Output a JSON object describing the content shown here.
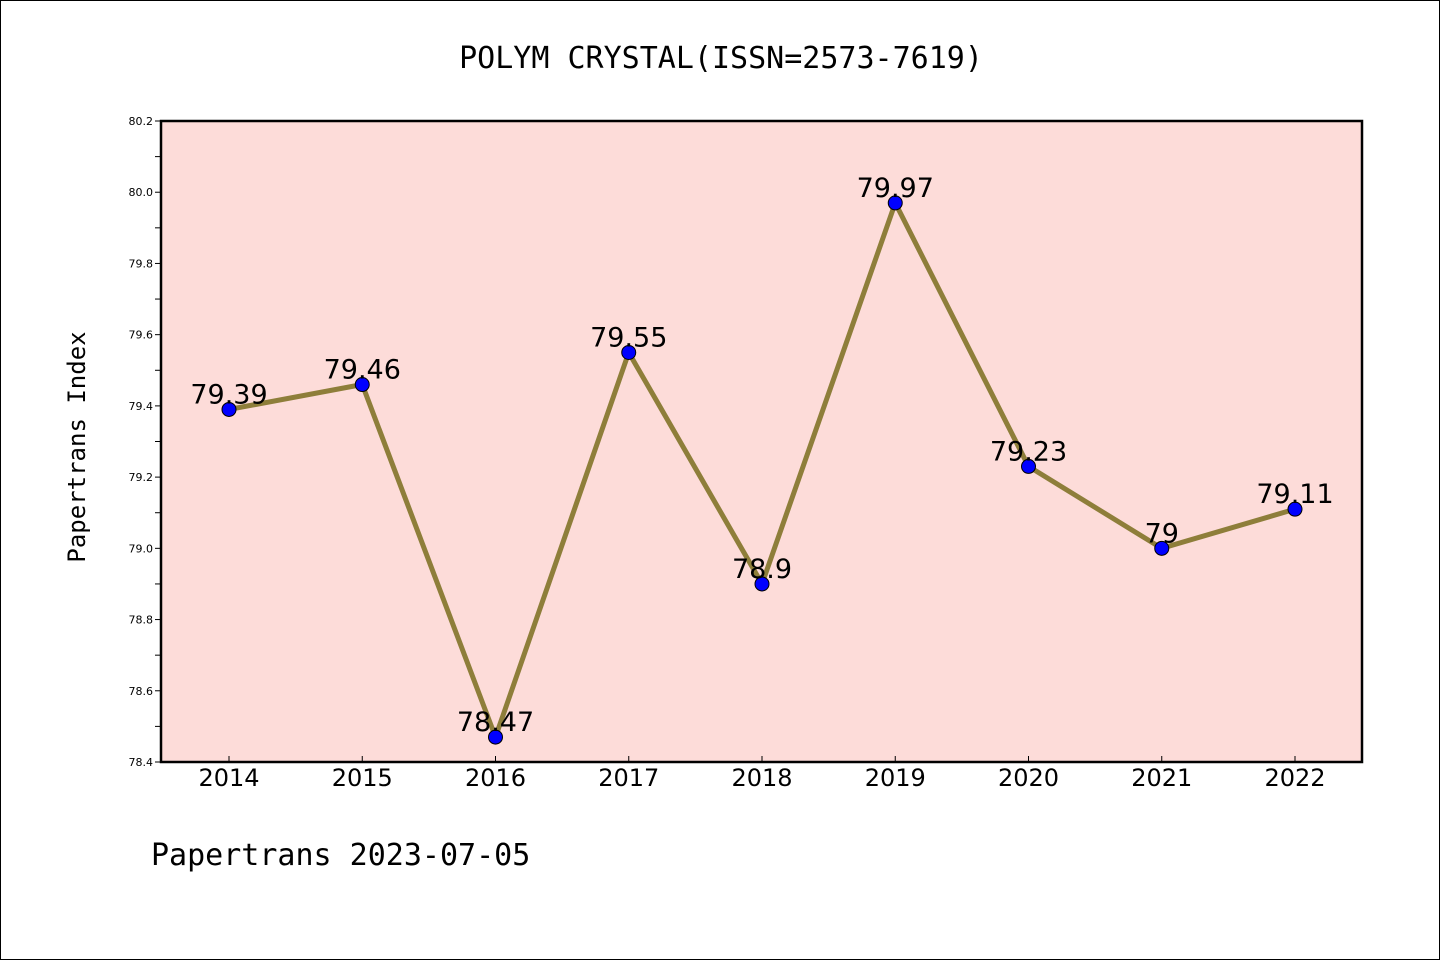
{
  "chart_data": {
    "type": "line",
    "title": "POLYM CRYSTAL(ISSN=2573-7619)",
    "ylabel": "Papertrans Index",
    "xlabel": "",
    "categories": [
      "2014",
      "2015",
      "2016",
      "2017",
      "2018",
      "2019",
      "2020",
      "2021",
      "2022"
    ],
    "series": [
      {
        "values": [
          79.39,
          79.46,
          78.47,
          79.55,
          78.9,
          79.97,
          79.23,
          79,
          79.11
        ],
        "labels": [
          "79.39",
          "79.46",
          "78.47",
          "79.55",
          "78.9",
          "79.97",
          "79.23",
          "79",
          "79.11"
        ]
      }
    ],
    "ylim": [
      78.4,
      80.2
    ],
    "yticks": [
      "78.4",
      "78.6",
      "78.8",
      "79.0",
      "79.2",
      "79.4",
      "79.6",
      "79.8",
      "80.0",
      "80.2"
    ],
    "grid": false,
    "colors": {
      "line": "#8e7e3a",
      "marker": "#0000ff",
      "plot_background": "#fddcd9"
    }
  },
  "footer": "Papertrans 2023-07-05"
}
